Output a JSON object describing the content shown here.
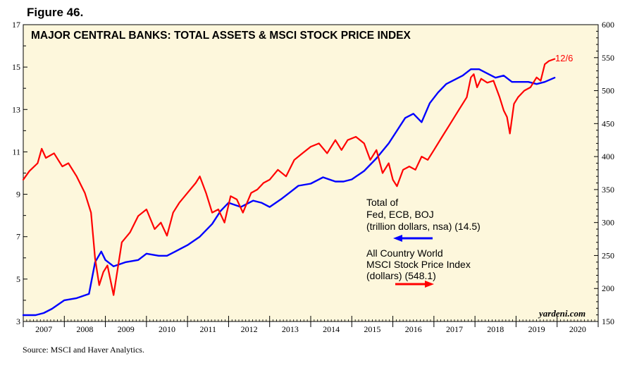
{
  "figure_label": "Figure 46.",
  "source": "Source: MSCI and Haver Analytics.",
  "chart_data": {
    "type": "line",
    "title": "MAJOR CENTRAL BANKS: TOTAL ASSETS & MSCI STOCK PRICE INDEX",
    "x_start": 2007.0,
    "x_end": 2021.0,
    "x_tick_labels": [
      "2007",
      "2008",
      "2009",
      "2010",
      "2011",
      "2012",
      "2013",
      "2014",
      "2015",
      "2016",
      "2017",
      "2018",
      "2019",
      "2020"
    ],
    "y_left": {
      "min": 3,
      "max": 17,
      "ticks": [
        "3",
        "5",
        "7",
        "9",
        "11",
        "13",
        "15",
        "17"
      ]
    },
    "y_right": {
      "min": 150,
      "max": 600,
      "ticks": [
        "150",
        "200",
        "250",
        "300",
        "350",
        "400",
        "450",
        "500",
        "550",
        "600"
      ]
    },
    "end_label": "12/6",
    "watermark": "yardeni.com",
    "series": [
      {
        "name": "Total of Fed, ECB, BOJ (trillion dollars, nsa) (14.5)",
        "legend_lines": [
          "Total of",
          "Fed, ECB, BOJ",
          "(trillion dollars, nsa) (14.5)"
        ],
        "axis": "left",
        "color": "#0000ff",
        "x": [
          2007.0,
          2007.3,
          2007.5,
          2007.7,
          2008.0,
          2008.3,
          2008.6,
          2008.75,
          2008.9,
          2009.0,
          2009.2,
          2009.5,
          2009.8,
          2010.0,
          2010.3,
          2010.5,
          2010.7,
          2011.0,
          2011.3,
          2011.6,
          2011.8,
          2012.0,
          2012.3,
          2012.6,
          2012.8,
          2013.0,
          2013.3,
          2013.5,
          2013.7,
          2014.0,
          2014.3,
          2014.6,
          2014.8,
          2015.0,
          2015.3,
          2015.6,
          2015.9,
          2016.1,
          2016.3,
          2016.5,
          2016.7,
          2016.9,
          2017.1,
          2017.3,
          2017.5,
          2017.7,
          2017.9,
          2018.1,
          2018.3,
          2018.5,
          2018.7,
          2018.9,
          2019.1,
          2019.3,
          2019.5,
          2019.7,
          2019.94
        ],
        "values": [
          3.3,
          3.3,
          3.4,
          3.6,
          4.0,
          4.1,
          4.3,
          5.8,
          6.3,
          5.9,
          5.6,
          5.8,
          5.9,
          6.2,
          6.1,
          6.1,
          6.3,
          6.6,
          7.0,
          7.6,
          8.2,
          8.6,
          8.4,
          8.7,
          8.6,
          8.4,
          8.8,
          9.1,
          9.4,
          9.5,
          9.8,
          9.6,
          9.6,
          9.7,
          10.1,
          10.7,
          11.4,
          12.0,
          12.6,
          12.8,
          12.4,
          13.3,
          13.8,
          14.2,
          14.4,
          14.6,
          14.9,
          14.9,
          14.7,
          14.5,
          14.6,
          14.3,
          14.3,
          14.3,
          14.2,
          14.3,
          14.5
        ]
      },
      {
        "name": "All Country World MSCI Stock Price Index (dollars) (548.1)",
        "legend_lines": [
          "All Country World",
          "MSCI Stock Price Index",
          "(dollars) (548.1)"
        ],
        "axis": "right",
        "color": "#ff0000",
        "x": [
          2007.0,
          2007.15,
          2007.35,
          2007.45,
          2007.55,
          2007.75,
          2007.95,
          2008.1,
          2008.3,
          2008.5,
          2008.65,
          2008.75,
          2008.85,
          2008.95,
          2009.05,
          2009.2,
          2009.4,
          2009.6,
          2009.8,
          2010.0,
          2010.2,
          2010.35,
          2010.5,
          2010.65,
          2010.8,
          2011.0,
          2011.2,
          2011.3,
          2011.45,
          2011.6,
          2011.75,
          2011.9,
          2012.05,
          2012.2,
          2012.35,
          2012.55,
          2012.7,
          2012.85,
          2013.0,
          2013.2,
          2013.4,
          2013.6,
          2013.8,
          2014.0,
          2014.2,
          2014.4,
          2014.6,
          2014.75,
          2014.9,
          2015.1,
          2015.3,
          2015.45,
          2015.6,
          2015.75,
          2015.9,
          2016.0,
          2016.1,
          2016.25,
          2016.4,
          2016.55,
          2016.7,
          2016.85,
          2017.0,
          2017.2,
          2017.4,
          2017.6,
          2017.8,
          2017.9,
          2017.97,
          2018.05,
          2018.15,
          2018.3,
          2018.45,
          2018.6,
          2018.7,
          2018.78,
          2018.85,
          2018.95,
          2019.05,
          2019.2,
          2019.35,
          2019.5,
          2019.6,
          2019.7,
          2019.8,
          2019.94
        ],
        "values": [
          365,
          378,
          390,
          412,
          398,
          405,
          385,
          390,
          370,
          345,
          315,
          245,
          205,
          225,
          235,
          190,
          270,
          285,
          310,
          320,
          290,
          300,
          280,
          315,
          330,
          345,
          360,
          370,
          345,
          315,
          320,
          300,
          340,
          335,
          315,
          345,
          350,
          360,
          365,
          380,
          370,
          395,
          405,
          415,
          420,
          405,
          425,
          410,
          425,
          430,
          420,
          395,
          410,
          375,
          390,
          365,
          355,
          380,
          385,
          380,
          400,
          395,
          410,
          430,
          450,
          470,
          490,
          520,
          525,
          505,
          518,
          512,
          515,
          490,
          470,
          460,
          435,
          480,
          490,
          500,
          505,
          520,
          515,
          540,
          545,
          548
        ]
      }
    ]
  }
}
